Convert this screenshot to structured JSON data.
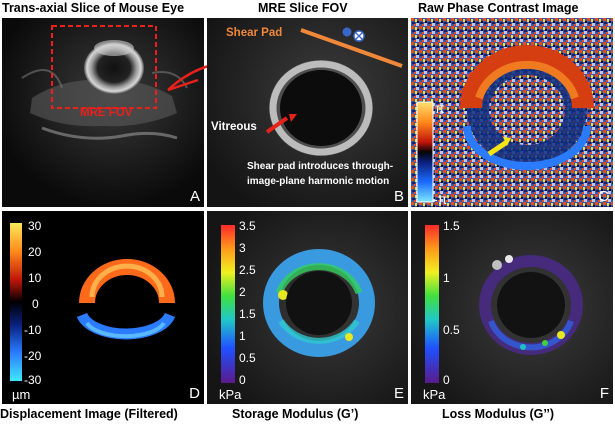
{
  "titles": {
    "a": "Trans-axial Slice of Mouse Eye",
    "b": "MRE Slice FOV",
    "c": "Raw Phase Contrast Image",
    "d": "Displacement Image (Filtered)",
    "e": "Storage Modulus (G’)",
    "f": "Loss Modulus (G’’)"
  },
  "letters": {
    "a": "A",
    "b": "B",
    "c": "C",
    "d": "D",
    "e": "E",
    "f": "F"
  },
  "panel_a": {
    "fov_label": "MRE FOV"
  },
  "panel_b": {
    "shear_pad_label": "Shear Pad",
    "vitreous_label": "Vitreous",
    "caption_line1": "Shear pad introduces through-",
    "caption_line2": "image-plane harmonic motion"
  },
  "panel_c": {
    "max_label": "π",
    "min_label": "-π"
  },
  "panel_d": {
    "ticks": [
      "30",
      "20",
      "10",
      "0",
      "-10",
      "-20",
      "-30"
    ],
    "unit": "µm"
  },
  "panel_e": {
    "ticks": [
      "3.5",
      "3",
      "2.5",
      "2",
      "1.5",
      "1",
      "0.5",
      "0"
    ],
    "unit": "kPa"
  },
  "panel_f": {
    "ticks": [
      "1.5",
      "1",
      "0.5",
      "0"
    ],
    "unit": "kPa"
  },
  "colors": {
    "annotation_red": "#e8211b",
    "shear_pad_orange": "#f0883a",
    "arrow_yellow": "#f7e414"
  }
}
